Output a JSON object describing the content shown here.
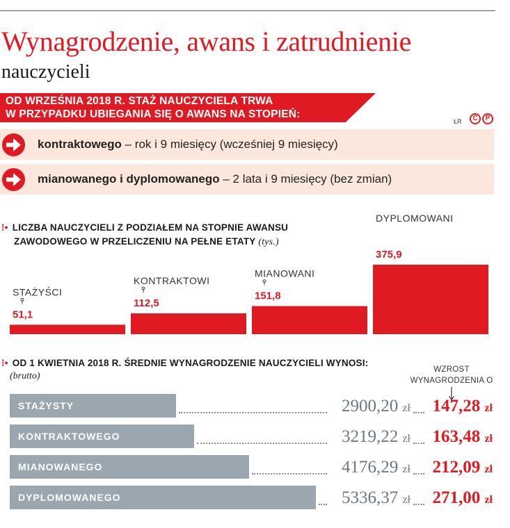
{
  "header": {
    "title": "Wynagrodzenie, awans i zatrudnienie",
    "subtitle": "nauczycieli"
  },
  "banner": {
    "line1": "OD WRZEŚNIA 2018 R. STAŻ NAUCZYCIELA TRWA",
    "line2": "W PRZYPADKU UBIEGANIA SIĘ O AWANS NA STOPIEŃ:"
  },
  "source": {
    "author": "ŁR",
    "logo_letters": [
      "C",
      "P"
    ]
  },
  "info_rows": [
    {
      "bold": "kontraktowego",
      "text": " – rok i 9 miesięcy (wcześniej 9 miesięcy)"
    },
    {
      "bold": "mianowanego i dyplomowanego",
      "text": " – 2 lata i 9 miesięcy (bez zmian)"
    }
  ],
  "section1": {
    "line1": "LICZBA NAUCZYCIELI Z PODZIAŁEM NA STOPNIE AWANSU",
    "line2": "ZAWODOWEGO W PRZELICZENIU NA PEŁNE ETATY",
    "unit": "(tys.)"
  },
  "section2": {
    "title": "OD 1 KWIETNIA 2018 R. ŚREDNIE WYNAGRODZENIE NAUCZYCIELI WYNOSI:",
    "note": "(brutto)",
    "raise_header_line1": "WZROST",
    "raise_header_line2": "WYNAGRODZENIA O"
  },
  "colors": {
    "accent": "#e01a22",
    "bar_grey": "#9aa6b0",
    "info_bg": "#fbe7dc"
  },
  "chart_data": [
    {
      "type": "bar",
      "title": "LICZBA NAUCZYCIELI Z PODZIAŁEM NA STOPNIE AWANSU ZAWODOWEGO W PRZELICZENIU NA PEŁNE ETATY (tys.)",
      "categories": [
        "STAŻYŚCI",
        "KONTRAKTOWI",
        "MIANOWANI",
        "DYPLOMOWANI"
      ],
      "values": [
        51.1,
        112.5,
        151.8,
        375.9
      ],
      "labels": [
        "51,1",
        "112,5",
        "151,8",
        "375,9"
      ],
      "ylim": [
        0,
        375.9
      ]
    },
    {
      "type": "bar",
      "title": "OD 1 KWIETNIA 2018 R. ŚREDNIE WYNAGRODZENIE NAUCZYCIELI WYNOSI:",
      "categories": [
        "STAŻYSTY",
        "KONTRAKTOWEGO",
        "MIANOWANEGO",
        "DYPLOMOWANEGO"
      ],
      "series": [
        {
          "values": [
            2900.2,
            3219.22,
            4176.29,
            5336.37
          ],
          "labels": [
            "2900,20",
            "3219,22",
            "4176,29",
            "5336,37"
          ]
        },
        {
          "name": "WZROST WYNAGRODZENIA O",
          "values": [
            147.28,
            163.48,
            212.09,
            271.0
          ],
          "labels": [
            "147,28",
            "163,48",
            "212,09",
            "271,00"
          ]
        }
      ],
      "currency": "zł"
    }
  ]
}
